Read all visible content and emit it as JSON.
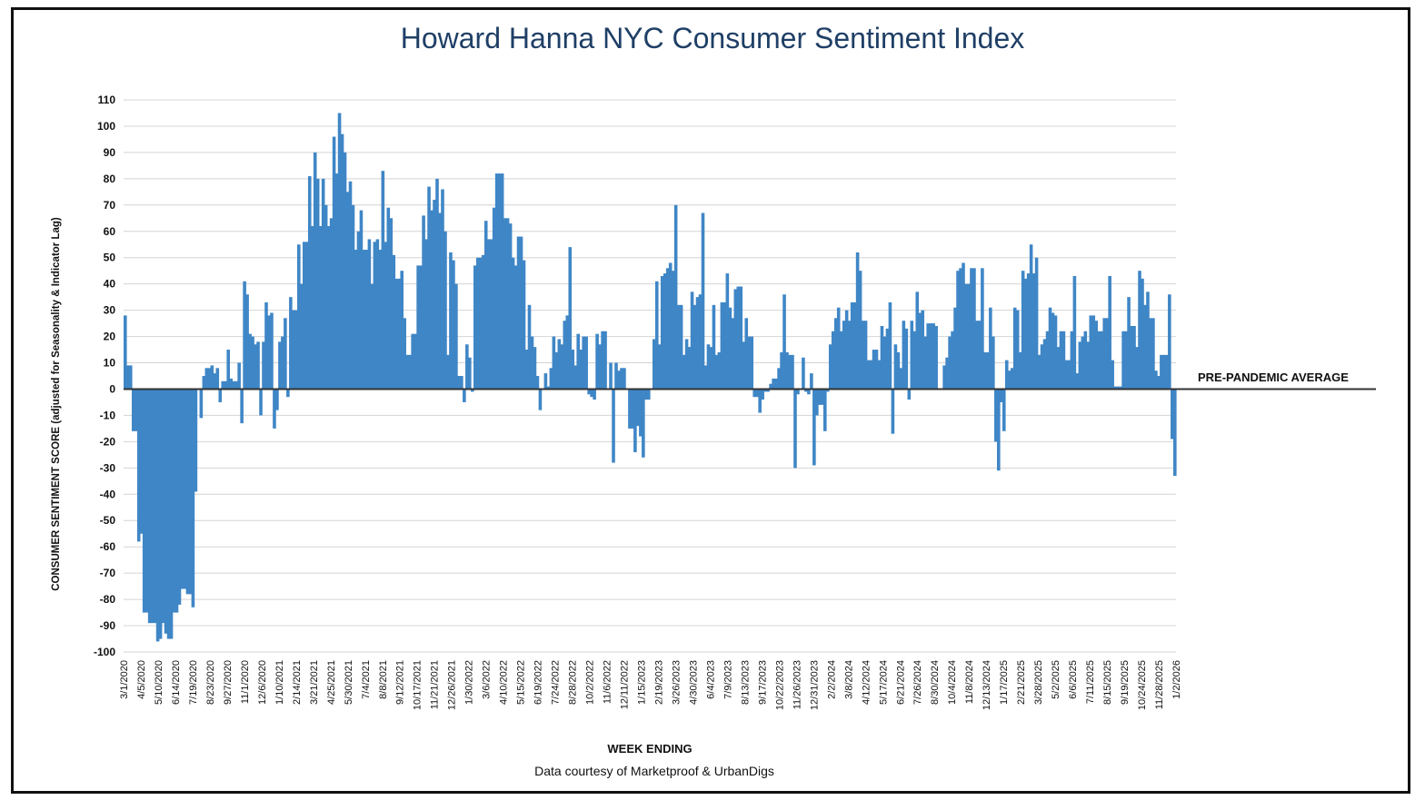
{
  "chart_data": {
    "type": "bar",
    "title": "Howard Hanna NYC Consumer Sentiment Index",
    "xlabel": "WEEK ENDING",
    "ylabel": "CONSUMER SENTIMENT SCORE (adjusted for Seasonality & Indicator Lag)",
    "source": "Data courtesy of Marketproof & UrbanDigs",
    "reference_line": {
      "value": 0,
      "label": "PRE-PANDEMIC AVERAGE"
    },
    "ylim": [
      -100,
      110
    ],
    "yticks": [
      110,
      100,
      90,
      80,
      70,
      60,
      50,
      40,
      30,
      20,
      10,
      0,
      -10,
      -20,
      -30,
      -40,
      -50,
      -60,
      -70,
      -80,
      -90,
      -100
    ],
    "grid": true,
    "bar_color": "#3f86c6",
    "x_tick_labels": [
      "3/1/2020",
      "4/5/2020",
      "5/10/2020",
      "6/14/2020",
      "7/19/2020",
      "8/23/2020",
      "9/27/2020",
      "11/1/2020",
      "12/6/2020",
      "1/10/2021",
      "2/14/2021",
      "3/21/2021",
      "4/25/2021",
      "5/30/2021",
      "7/4/2021",
      "8/8/2021",
      "9/12/2021",
      "10/17/2021",
      "11/21/2021",
      "12/26/2021",
      "1/30/2022",
      "3/6/2022",
      "4/10/2022",
      "5/15/2022",
      "6/19/2022",
      "7/24/2022",
      "8/28/2022",
      "10/2/2022",
      "11/6/2022",
      "12/11/2022",
      "1/15/2023",
      "2/19/2023",
      "3/26/2023",
      "4/30/2023",
      "6/4/2023",
      "7/9/2023",
      "8/13/2023",
      "9/17/2023",
      "10/22/2023",
      "11/26/2023",
      "12/31/2023",
      "2/2/2024",
      "3/8/2024",
      "4/12/2024",
      "5/17/2024",
      "6/21/2024",
      "7/26/2024",
      "8/30/2024",
      "10/4/2024",
      "11/8/2024",
      "12/13/2024",
      "1/17/2025",
      "2/21/2025",
      "3/28/2025",
      "5/2/2025",
      "6/6/2025",
      "7/11/2025",
      "8/15/2025",
      "9/19/2025",
      "10/24/2025",
      "11/28/2025",
      "1/2/2026"
    ],
    "values": [
      28,
      9,
      9,
      -16,
      -16,
      -58,
      -55,
      -85,
      -85,
      -89,
      -89,
      -89,
      -96,
      -95,
      -89,
      -93,
      -95,
      -95,
      -85,
      -85,
      -82,
      -76,
      -76,
      -78,
      -78,
      -83,
      -39,
      0,
      -11,
      5,
      8,
      8,
      9,
      6,
      8,
      -5,
      3,
      3,
      15,
      4,
      3,
      3,
      10,
      -13,
      41,
      36,
      21,
      20,
      17,
      18,
      -10,
      18,
      33,
      28,
      29,
      -15,
      -8,
      18,
      20,
      27,
      -3,
      35,
      30,
      30,
      55,
      40,
      56,
      56,
      81,
      62,
      90,
      80,
      62,
      80,
      70,
      62,
      65,
      96,
      82,
      105,
      97,
      90,
      75,
      79,
      70,
      53,
      60,
      68,
      53,
      53,
      57,
      40,
      56,
      57,
      53,
      83,
      56,
      69,
      65,
      51,
      42,
      42,
      45,
      27,
      13,
      13,
      21,
      21,
      47,
      47,
      66,
      57,
      77,
      68,
      72,
      80,
      67,
      76,
      60,
      13,
      52,
      49,
      40,
      5,
      5,
      -5,
      17,
      12,
      -1,
      47,
      50,
      50,
      51,
      64,
      57,
      57,
      69,
      82,
      82,
      82,
      65,
      65,
      63,
      50,
      47,
      58,
      58,
      49,
      15,
      32,
      20,
      16,
      5,
      -8,
      0,
      6,
      1,
      8,
      20,
      14,
      19,
      17,
      26,
      28,
      54,
      15,
      9,
      21,
      15,
      20,
      20,
      -2,
      -3,
      -4,
      21,
      17,
      22,
      22,
      0,
      10,
      -28,
      10,
      7,
      8,
      8,
      0,
      -15,
      -15,
      -24,
      -14,
      -18,
      -26,
      -4,
      -4,
      0,
      19,
      41,
      17,
      43,
      44,
      46,
      48,
      45,
      70,
      32,
      32,
      13,
      19,
      16,
      37,
      32,
      35,
      36,
      67,
      9,
      17,
      16,
      32,
      13,
      14,
      33,
      33,
      44,
      31,
      27,
      38,
      39,
      39,
      18,
      27,
      20,
      20,
      -3,
      -3,
      -9,
      -4,
      -1,
      -1,
      2,
      4,
      4,
      8,
      14,
      36,
      14,
      13,
      13,
      -30,
      -2,
      0,
      12,
      -1,
      -2,
      6,
      -29,
      -10,
      -6,
      -6,
      -16,
      -1,
      17,
      22,
      27,
      31,
      22,
      26,
      30,
      26,
      33,
      33,
      52,
      45,
      26,
      26,
      11,
      11,
      15,
      15,
      11,
      24,
      20,
      23,
      33,
      -17,
      17,
      14,
      8,
      26,
      23,
      -4,
      26,
      22,
      37,
      29,
      30,
      20,
      25,
      25,
      25,
      24,
      0,
      0,
      9,
      12,
      20,
      22,
      31,
      45,
      46,
      48,
      40,
      40,
      46,
      46,
      26,
      26,
      46,
      14,
      14,
      31,
      20,
      -20,
      -31,
      -5,
      -16,
      11,
      7,
      8,
      31,
      30,
      14,
      45,
      42,
      44,
      55,
      44,
      50,
      13,
      17,
      19,
      22,
      31,
      29,
      28,
      16,
      22,
      22,
      11,
      11,
      22,
      43,
      6,
      18,
      20,
      22,
      18,
      28,
      28,
      26,
      22,
      22,
      27,
      27,
      43,
      11,
      1,
      1,
      1,
      22,
      22,
      35,
      24,
      24,
      16,
      45,
      42,
      32,
      37,
      27,
      27,
      7,
      5,
      13,
      13,
      13,
      36,
      -19,
      -33
    ]
  }
}
